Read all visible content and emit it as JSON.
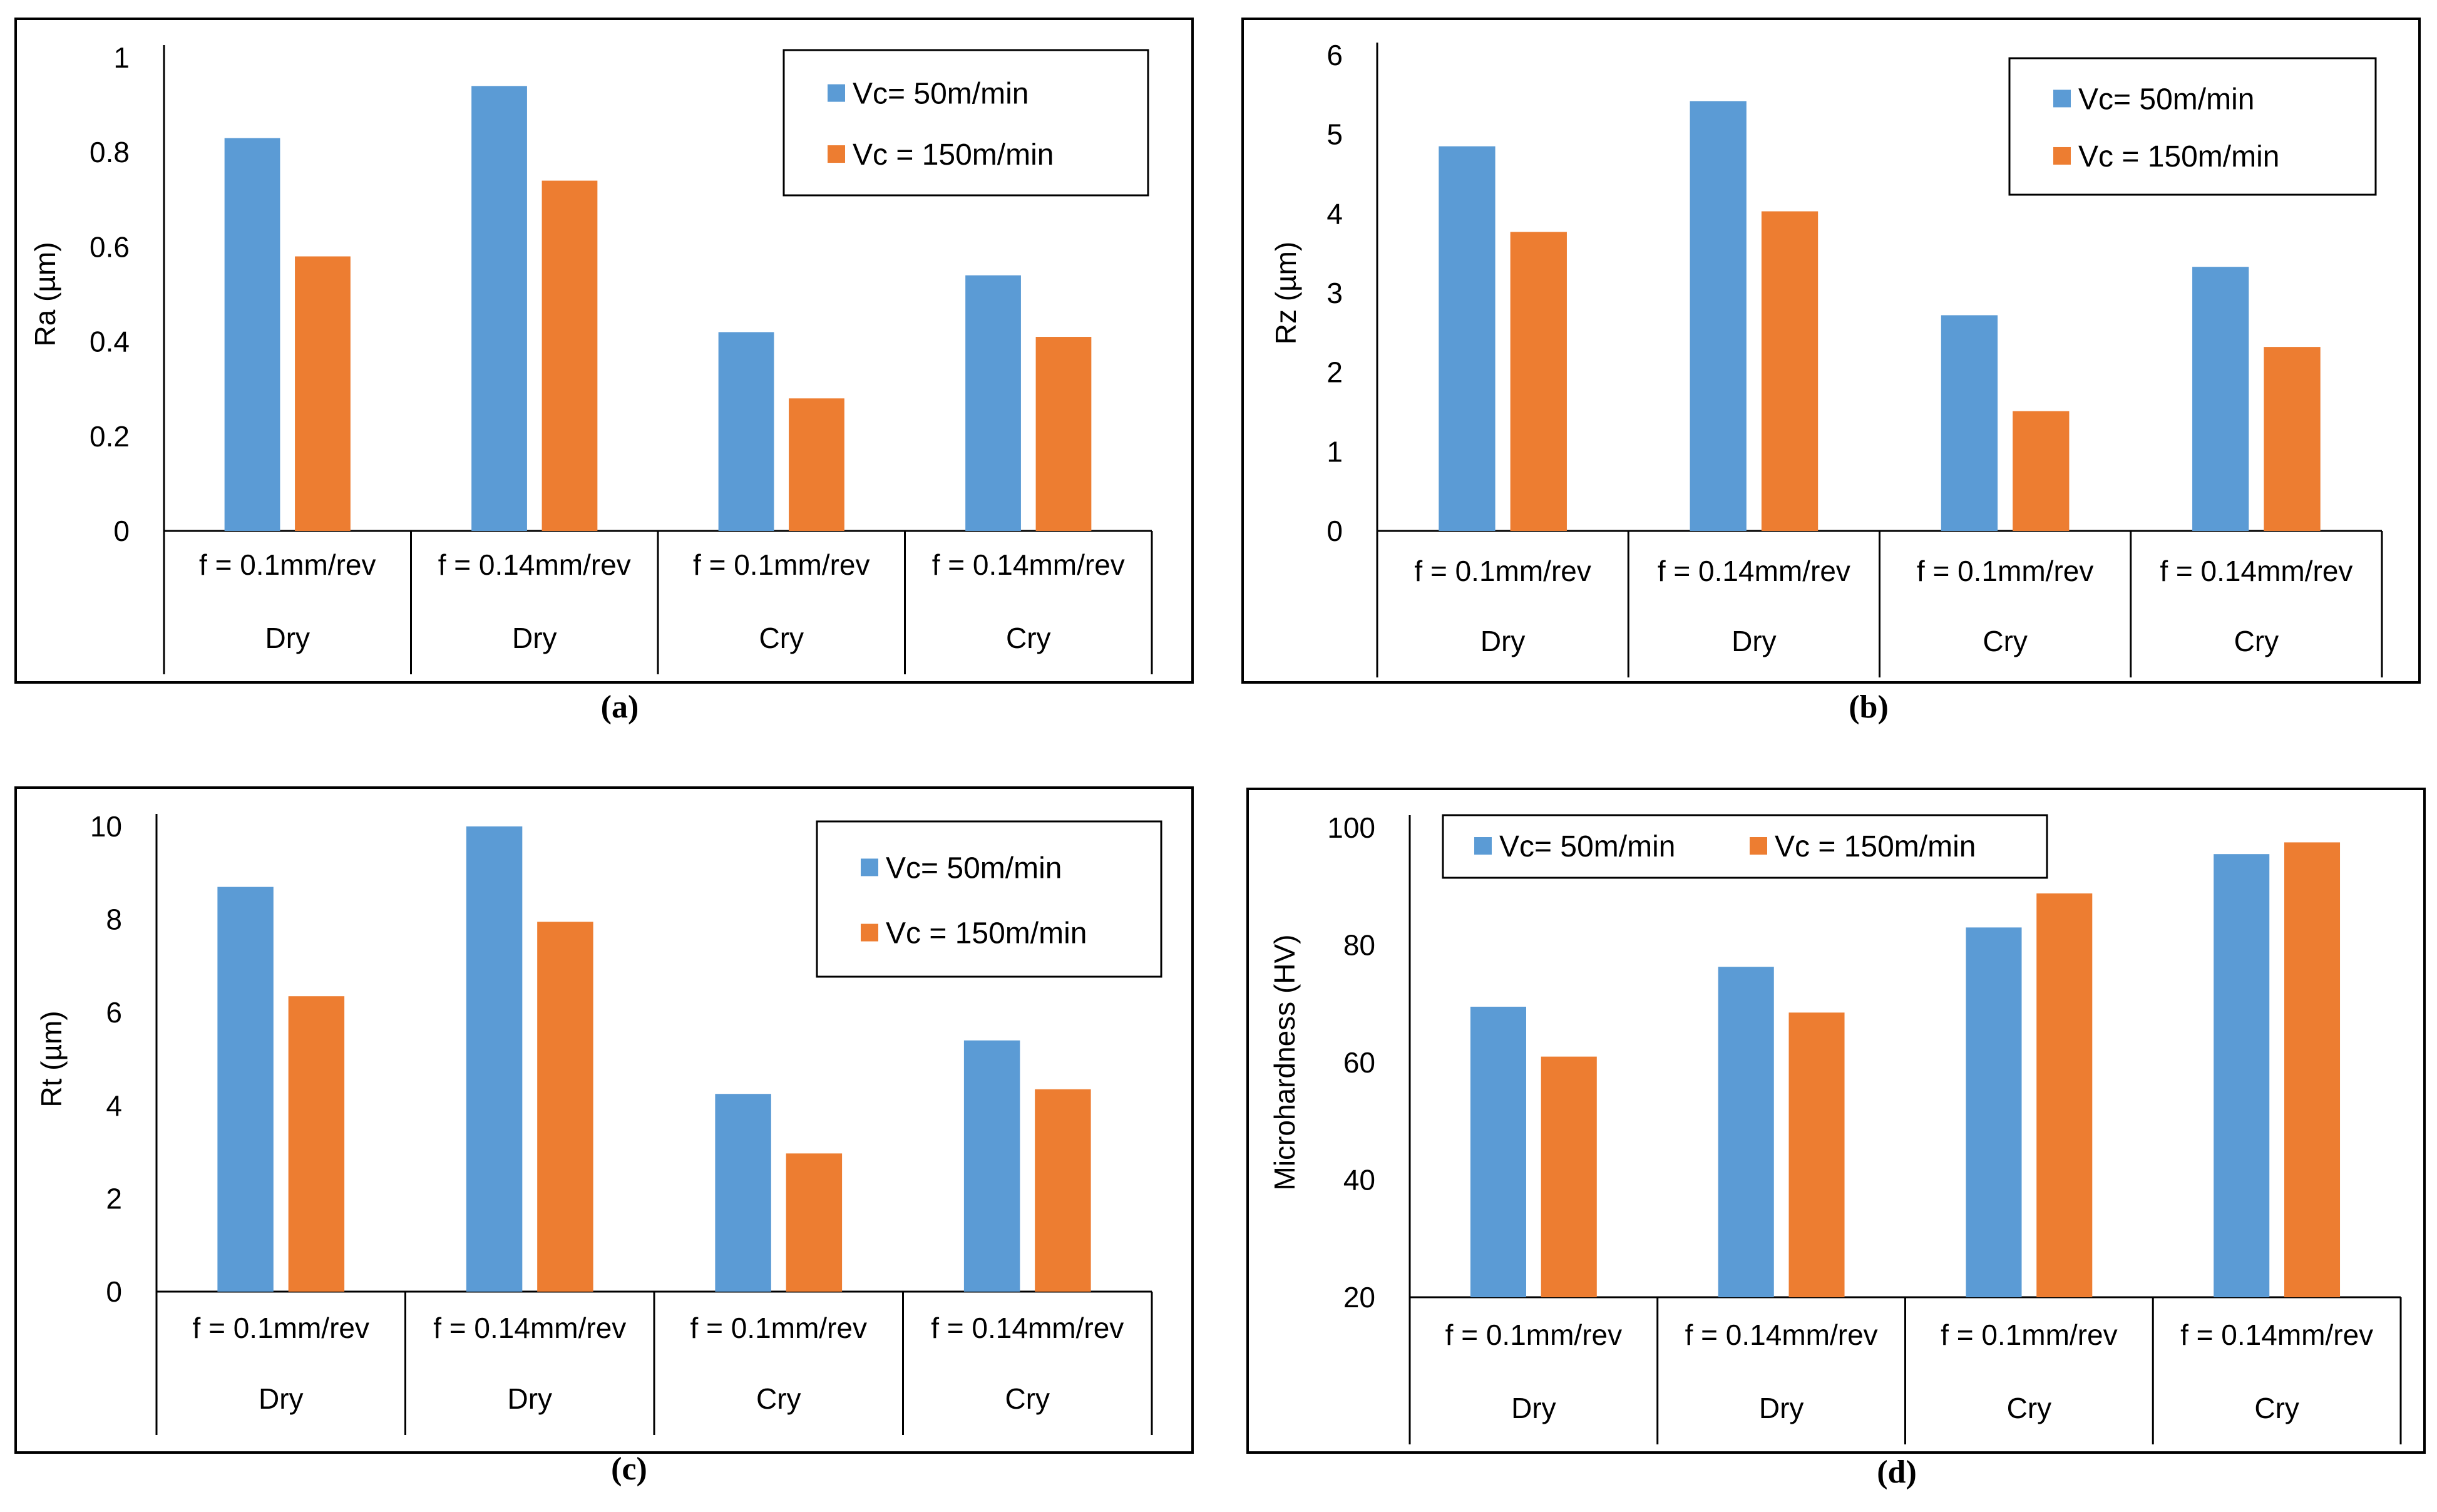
{
  "colors": {
    "series_50": "#5B9BD5",
    "series_150": "#ED7D31"
  },
  "chart_data": [
    {
      "type": "bar",
      "panel": "(a)",
      "ylabel": "Ra (µm)",
      "ylim": [
        0,
        1
      ],
      "yticks": [
        "0",
        "0.2",
        "0.4",
        "0.6",
        "0.8",
        "1"
      ],
      "categories": [
        {
          "feed": "f = 0.1mm/rev",
          "condition": "Dry"
        },
        {
          "feed": "f = 0.14mm/rev",
          "condition": "Dry"
        },
        {
          "feed": "f = 0.1mm/rev",
          "condition": "Cry"
        },
        {
          "feed": "f = 0.14mm/rev",
          "condition": "Cry"
        }
      ],
      "series": [
        {
          "name": "Vc= 50m/min",
          "values": [
            0.83,
            0.94,
            0.42,
            0.54
          ]
        },
        {
          "name": "Vc = 150m/min",
          "values": [
            0.58,
            0.74,
            0.28,
            0.41
          ]
        }
      ],
      "legend": "top-right",
      "legend_layout": "vertical"
    },
    {
      "type": "bar",
      "panel": "(b)",
      "ylabel": "Rz (µm)",
      "ylim": [
        0,
        6
      ],
      "yticks": [
        "0",
        "1",
        "2",
        "3",
        "4",
        "5",
        "6"
      ],
      "categories": [
        {
          "feed": "f = 0.1mm/rev",
          "condition": "Dry"
        },
        {
          "feed": "f = 0.14mm/rev",
          "condition": "Dry"
        },
        {
          "feed": "f = 0.1mm/rev",
          "condition": "Cry"
        },
        {
          "feed": "f = 0.14mm/rev",
          "condition": "Cry"
        }
      ],
      "series": [
        {
          "name": "Vc= 50m/min",
          "values": [
            4.85,
            5.42,
            2.72,
            3.33
          ]
        },
        {
          "name": "Vc = 150m/min",
          "values": [
            3.77,
            4.03,
            1.51,
            2.32
          ]
        }
      ],
      "legend": "top-right",
      "legend_layout": "vertical"
    },
    {
      "type": "bar",
      "panel": "(c)",
      "ylabel": "Rt (µm)",
      "ylim": [
        0,
        10
      ],
      "yticks": [
        "0",
        "2",
        "4",
        "6",
        "8",
        "10"
      ],
      "categories": [
        {
          "feed": "f = 0.1mm/rev",
          "condition": "Dry"
        },
        {
          "feed": "f = 0.14mm/rev",
          "condition": "Dry"
        },
        {
          "feed": "f = 0.1mm/rev",
          "condition": "Cry"
        },
        {
          "feed": "f = 0.14mm/rev",
          "condition": "Cry"
        }
      ],
      "series": [
        {
          "name": "Vc= 50m/min",
          "values": [
            8.7,
            10.0,
            4.25,
            5.4
          ]
        },
        {
          "name": "Vc = 150m/min",
          "values": [
            6.35,
            7.95,
            2.97,
            4.35
          ]
        }
      ],
      "legend": "top-right",
      "legend_layout": "vertical"
    },
    {
      "type": "bar",
      "panel": "(d)",
      "ylabel": "Microhardness (HV)",
      "ylim": [
        20,
        100
      ],
      "yticks": [
        "20",
        "40",
        "60",
        "80",
        "100"
      ],
      "categories": [
        {
          "feed": "f = 0.1mm/rev",
          "condition": "Dry"
        },
        {
          "feed": "f = 0.14mm/rev",
          "condition": "Dry"
        },
        {
          "feed": "f = 0.1mm/rev",
          "condition": "Cry"
        },
        {
          "feed": "f = 0.14mm/rev",
          "condition": "Cry"
        }
      ],
      "series": [
        {
          "name": "Vc= 50m/min",
          "values": [
            69.5,
            76.3,
            83.0,
            95.5
          ]
        },
        {
          "name": "Vc = 150m/min",
          "values": [
            61.0,
            68.5,
            88.8,
            97.5
          ]
        }
      ],
      "legend": "top-left",
      "legend_layout": "horizontal"
    }
  ]
}
